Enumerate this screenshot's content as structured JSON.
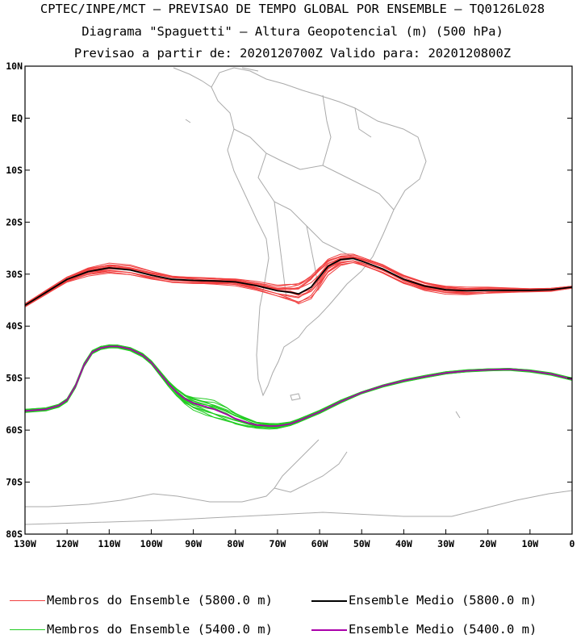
{
  "header": {
    "line1": "CPTEC/INPE/MCT – PREVISAO DE TEMPO GLOBAL POR ENSEMBLE – TQ0126L028",
    "line2": "Diagrama \"Spaguetti\" – Altura Geopotencial (m) (500 hPa)",
    "line3": "Previsao a partir de: 2020120700Z  Valido para: 2020120800Z"
  },
  "colors": {
    "member_5800": "#f04040",
    "mean_5800": "#000000",
    "member_5400": "#22cc22",
    "mean_5400": "#aa00aa",
    "coast": "#aaaaaa"
  },
  "chart_data": {
    "type": "line",
    "title": "CPTEC/INPE/MCT – PREVISAO DE TEMPO GLOBAL POR ENSEMBLE – TQ0126L028",
    "xlim": [
      -130,
      0
    ],
    "ylim": [
      -80,
      10
    ],
    "x_ticks": [
      {
        "value": -130,
        "label": "130W"
      },
      {
        "value": -120,
        "label": "120W"
      },
      {
        "value": -110,
        "label": "110W"
      },
      {
        "value": -100,
        "label": "100W"
      },
      {
        "value": -90,
        "label": "90W"
      },
      {
        "value": -80,
        "label": "80W"
      },
      {
        "value": -70,
        "label": "70W"
      },
      {
        "value": -60,
        "label": "60W"
      },
      {
        "value": -50,
        "label": "50W"
      },
      {
        "value": -40,
        "label": "40W"
      },
      {
        "value": -30,
        "label": "30W"
      },
      {
        "value": -20,
        "label": "20W"
      },
      {
        "value": -10,
        "label": "10W"
      },
      {
        "value": 0,
        "label": "0"
      }
    ],
    "y_ticks": [
      {
        "value": 10,
        "label": "10N"
      },
      {
        "value": 0,
        "label": "EQ"
      },
      {
        "value": -10,
        "label": "10S"
      },
      {
        "value": -20,
        "label": "20S"
      },
      {
        "value": -30,
        "label": "30S"
      },
      {
        "value": -40,
        "label": "40S"
      },
      {
        "value": -50,
        "label": "50S"
      },
      {
        "value": -60,
        "label": "60S"
      },
      {
        "value": -70,
        "label": "70S"
      },
      {
        "value": -80,
        "label": "80S"
      }
    ],
    "series": [
      {
        "name": "Ensemble Medio (5800.0 m)",
        "kind": "mean",
        "color": "#000000",
        "x": [
          -130,
          -125,
          -120,
          -115,
          -110,
          -105,
          -100,
          -95,
          -90,
          -85,
          -80,
          -75,
          -70,
          -67,
          -65,
          -62,
          -60,
          -58,
          -55,
          -52,
          -50,
          -45,
          -40,
          -35,
          -30,
          -25,
          -20,
          -15,
          -10,
          -5,
          0
        ],
        "y": [
          -36,
          -33.5,
          -31,
          -29.5,
          -28.8,
          -29.2,
          -30.2,
          -31,
          -31.2,
          -31.3,
          -31.5,
          -32.2,
          -33.2,
          -33.5,
          -33.8,
          -32.5,
          -30.5,
          -28.5,
          -27.2,
          -27,
          -27.5,
          -29,
          -31,
          -32.3,
          -33,
          -33.2,
          -33.1,
          -33.1,
          -33.1,
          -33,
          -32.5
        ]
      },
      {
        "name": "Membros do Ensemble (5800.0 m)",
        "kind": "members",
        "color": "#f04040",
        "count": 14,
        "base": "Ensemble Medio (5800.0 m)",
        "spread": [
          0.3,
          0.4,
          0.5,
          0.7,
          0.8,
          0.8,
          0.7,
          0.6,
          0.6,
          0.6,
          0.6,
          0.7,
          0.9,
          1.4,
          1.9,
          2.2,
          2.0,
          1.4,
          0.9,
          0.7,
          0.7,
          0.8,
          0.8,
          0.8,
          0.7,
          0.6,
          0.5,
          0.4,
          0.3,
          0.3,
          0.2
        ]
      },
      {
        "name": "Ensemble Medio (5400.0 m)",
        "kind": "mean",
        "color": "#aa00aa",
        "x": [
          -130,
          -125,
          -122,
          -120,
          -118,
          -116,
          -114,
          -112,
          -110,
          -108,
          -105,
          -102,
          -100,
          -98,
          -96,
          -94,
          -92,
          -90,
          -87,
          -85,
          -82,
          -80,
          -77,
          -75,
          -72,
          -70,
          -67,
          -65,
          -60,
          -55,
          -50,
          -45,
          -40,
          -35,
          -30,
          -25,
          -20,
          -15,
          -10,
          -5,
          0
        ],
        "y": [
          -56.3,
          -56,
          -55.3,
          -54.2,
          -51.5,
          -47.5,
          -45,
          -44.2,
          -43.9,
          -43.9,
          -44.4,
          -45.6,
          -47,
          -49,
          -51,
          -52.7,
          -54,
          -54.8,
          -55.5,
          -56,
          -57,
          -57.8,
          -58.6,
          -59,
          -59.2,
          -59.2,
          -58.8,
          -58.2,
          -56.5,
          -54.5,
          -52.8,
          -51.5,
          -50.5,
          -49.7,
          -49,
          -48.6,
          -48.4,
          -48.3,
          -48.6,
          -49.2,
          -50.2
        ]
      },
      {
        "name": "Membros do Ensemble (5400.0 m)",
        "kind": "members",
        "color": "#22cc22",
        "count": 14,
        "base": "Ensemble Medio (5400.0 m)",
        "spread": [
          0.3,
          0.3,
          0.3,
          0.3,
          0.3,
          0.3,
          0.3,
          0.3,
          0.3,
          0.3,
          0.3,
          0.3,
          0.3,
          0.4,
          0.5,
          0.7,
          0.9,
          1.1,
          1.3,
          1.4,
          1.2,
          1.0,
          0.8,
          0.6,
          0.5,
          0.4,
          0.3,
          0.3,
          0.3,
          0.3,
          0.2,
          0.2,
          0.2,
          0.2,
          0.2,
          0.2,
          0.2,
          0.2,
          0.2,
          0.2,
          0.2
        ]
      }
    ]
  },
  "legend": [
    {
      "label": "Membros do Ensemble (5800.0 m)",
      "color": "#f04040",
      "bold": false
    },
    {
      "label": "Ensemble Medio (5800.0 m)",
      "color": "#000000",
      "bold": true
    },
    {
      "label": "Membros do Ensemble (5400.0 m)",
      "color": "#22cc22",
      "bold": false
    },
    {
      "label": "Ensemble Medio (5400.0 m)",
      "color": "#aa00aa",
      "bold": true
    }
  ]
}
